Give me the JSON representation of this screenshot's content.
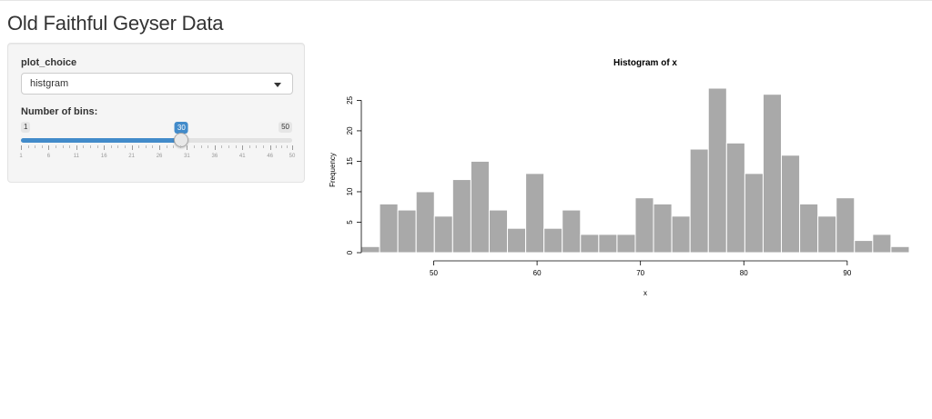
{
  "app": {
    "title": "Old Faithful Geyser Data"
  },
  "sidebar": {
    "plot_choice_label": "plot_choice",
    "plot_choice_value": "histgram",
    "bins_label": "Number of bins:",
    "slider": {
      "min": 1,
      "max": 50,
      "value": 30,
      "min_label": "1",
      "max_label": "50",
      "value_label": "30",
      "tick_labels": [
        "1",
        "6",
        "11",
        "16",
        "21",
        "26",
        "31",
        "36",
        "41",
        "46",
        "50"
      ]
    }
  },
  "colors": {
    "accent": "#428bca",
    "bar": "#a9a9a9"
  },
  "chart_data": {
    "type": "bar",
    "title": "Histogram of x",
    "xlabel": "x",
    "ylabel": "Frequency",
    "bin_width": 1.7666,
    "bin_start": 43.0,
    "values": [
      1,
      8,
      7,
      10,
      6,
      12,
      15,
      7,
      4,
      13,
      4,
      7,
      3,
      3,
      3,
      9,
      8,
      6,
      17,
      27,
      18,
      13,
      26,
      16,
      8,
      6,
      9,
      2,
      3,
      1
    ],
    "x_ticks": [
      50,
      60,
      70,
      80,
      90
    ],
    "x_tick_labels": [
      "50",
      "60",
      "70",
      "80",
      "90"
    ],
    "y_ticks": [
      0,
      5,
      10,
      15,
      20,
      25
    ],
    "y_tick_labels": [
      "0",
      "5",
      "10",
      "15",
      "20",
      "25"
    ],
    "xlim": [
      43.0,
      96.0
    ],
    "ylim": [
      0,
      27
    ],
    "grid": false
  }
}
